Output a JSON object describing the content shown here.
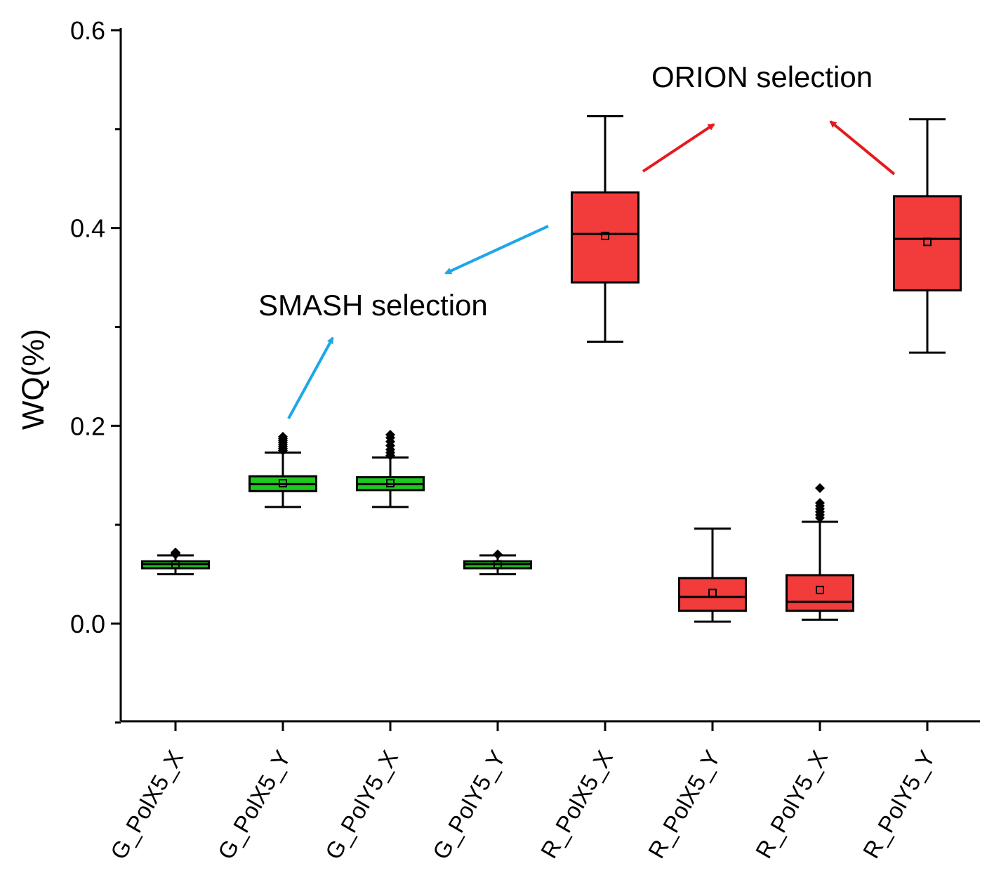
{
  "chart_data": {
    "type": "box",
    "title": "",
    "xlabel": "",
    "ylabel": "WQ(%)",
    "ylim": [
      -0.1,
      0.6
    ],
    "yticks": [
      0.0,
      0.2,
      0.4,
      0.6
    ],
    "ytick_labels": [
      "0.0",
      "0.2",
      "0.4",
      "0.6"
    ],
    "categories": [
      "G_PolX5_X",
      "G_PolX5_Y",
      "G_PolY5_X",
      "G_PolY5_Y",
      "R_PolX5_X",
      "R_PolX5_Y",
      "R_PolY5_X",
      "R_PolY5_Y"
    ],
    "boxes": [
      {
        "category": "G_PolX5_X",
        "color": "#1fc81f",
        "whisker_low": 0.05,
        "q1": 0.056,
        "median": 0.06,
        "q3": 0.063,
        "whisker_high": 0.069,
        "mean": 0.06,
        "outliers": [
          0.07,
          0.071,
          0.072
        ]
      },
      {
        "category": "G_PolX5_Y",
        "color": "#1fc81f",
        "whisker_low": 0.118,
        "q1": 0.134,
        "median": 0.141,
        "q3": 0.149,
        "whisker_high": 0.173,
        "mean": 0.142,
        "outliers": [
          0.175,
          0.177,
          0.179,
          0.181,
          0.183,
          0.185,
          0.187,
          0.189
        ]
      },
      {
        "category": "G_PolY5_X",
        "color": "#1fc81f",
        "whisker_low": 0.118,
        "q1": 0.135,
        "median": 0.141,
        "q3": 0.148,
        "whisker_high": 0.168,
        "mean": 0.142,
        "outliers": [
          0.17,
          0.173,
          0.176,
          0.18,
          0.184,
          0.188,
          0.191
        ]
      },
      {
        "category": "G_PolY5_Y",
        "color": "#1fc81f",
        "whisker_low": 0.05,
        "q1": 0.056,
        "median": 0.06,
        "q3": 0.063,
        "whisker_high": 0.069,
        "mean": 0.06,
        "outliers": [
          0.07
        ]
      },
      {
        "category": "R_PolX5_X",
        "color": "#f23c3c",
        "whisker_low": 0.285,
        "q1": 0.345,
        "median": 0.394,
        "q3": 0.436,
        "whisker_high": 0.513,
        "mean": 0.392,
        "outliers": []
      },
      {
        "category": "R_PolX5_Y",
        "color": "#f23c3c",
        "whisker_low": 0.002,
        "q1": 0.013,
        "median": 0.027,
        "q3": 0.046,
        "whisker_high": 0.096,
        "mean": 0.031,
        "outliers": []
      },
      {
        "category": "R_PolY5_X",
        "color": "#f23c3c",
        "whisker_low": 0.004,
        "q1": 0.013,
        "median": 0.022,
        "q3": 0.049,
        "whisker_high": 0.103,
        "mean": 0.034,
        "outliers": [
          0.107,
          0.11,
          0.113,
          0.116,
          0.119,
          0.122,
          0.137
        ]
      },
      {
        "category": "R_PolY5_Y",
        "color": "#f23c3c",
        "whisker_low": 0.274,
        "q1": 0.337,
        "median": 0.389,
        "q3": 0.432,
        "whisker_high": 0.51,
        "mean": 0.386,
        "outliers": []
      }
    ],
    "annotations": [
      {
        "text": "ORION selection",
        "color": "#e41a1c",
        "arrows_from": [
          "R_PolX5_X",
          "R_PolY5_Y"
        ]
      },
      {
        "text": "SMASH selection",
        "color": "#1ea6e8",
        "arrows_from": [
          "R_PolX5_X",
          "G_PolX5_Y"
        ]
      }
    ]
  }
}
